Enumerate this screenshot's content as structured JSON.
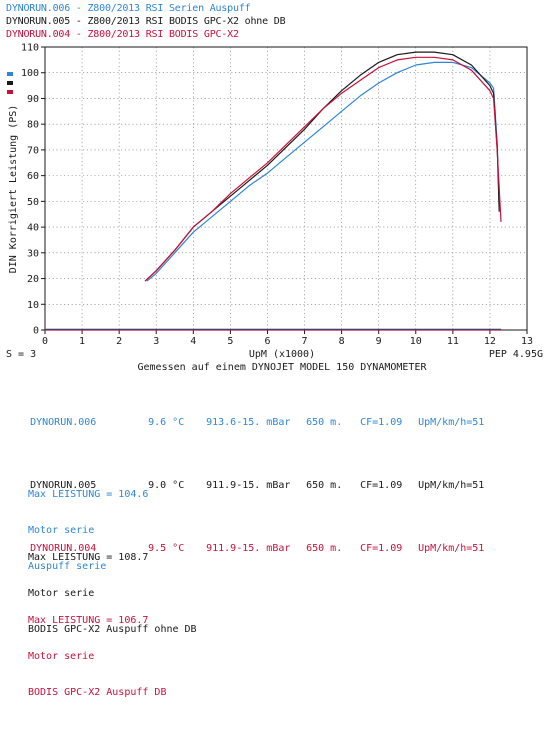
{
  "header_legend": [
    {
      "text": "DYNORUN.006 - Z800/2013 RSI Serien Auspuff",
      "color": "#2f86d6"
    },
    {
      "text": "DYNORUN.005 - Z800/2013 RSI BODIS GPC-X2 ohne DB",
      "color": "#1a1a1a"
    },
    {
      "text": "DYNORUN.004 - Z800/2013 RSI BODIS GPC-X2",
      "color": "#c8103c"
    }
  ],
  "chart_data": {
    "type": "line",
    "ylabel": "DIN Korrigiert Leistung (PS)",
    "xlabel": "UpM (x1000)",
    "footer_left": "S = 3",
    "footer_right": "PEP 4.95G",
    "subtitle": "Gemessen auf einem DYNOJET MODEL 150 DYNAMOMETER",
    "xlim": [
      0,
      13
    ],
    "ylim": [
      0,
      110
    ],
    "x_ticks": [
      0,
      1,
      2,
      3,
      4,
      5,
      6,
      7,
      8,
      9,
      10,
      11,
      12,
      13
    ],
    "y_ticks": [
      0,
      10,
      20,
      30,
      40,
      50,
      60,
      70,
      80,
      90,
      100,
      110
    ],
    "grid": true,
    "series": [
      {
        "name": "DYNORUN.006",
        "color": "#2f86d6",
        "points": [
          [
            2.75,
            19
          ],
          [
            3,
            22
          ],
          [
            3.5,
            30
          ],
          [
            4,
            38
          ],
          [
            4.5,
            44
          ],
          [
            5,
            50
          ],
          [
            5.5,
            56
          ],
          [
            6,
            61
          ],
          [
            6.5,
            67
          ],
          [
            7,
            73
          ],
          [
            7.5,
            79
          ],
          [
            8,
            85
          ],
          [
            8.5,
            91
          ],
          [
            9,
            96
          ],
          [
            9.5,
            100
          ],
          [
            10,
            103
          ],
          [
            10.5,
            104
          ],
          [
            11,
            104
          ],
          [
            11.5,
            102
          ],
          [
            12,
            96
          ],
          [
            12.1,
            94
          ],
          [
            12.2,
            72
          ],
          [
            12.25,
            48
          ]
        ]
      },
      {
        "name": "DYNORUN.005",
        "color": "#1a1a1a",
        "points": [
          [
            2.7,
            19
          ],
          [
            3,
            23
          ],
          [
            3.5,
            31
          ],
          [
            4,
            40
          ],
          [
            4.5,
            46
          ],
          [
            5,
            52
          ],
          [
            5.5,
            58
          ],
          [
            6,
            64
          ],
          [
            6.5,
            71
          ],
          [
            7,
            78
          ],
          [
            7.5,
            86
          ],
          [
            8,
            93
          ],
          [
            8.5,
            99
          ],
          [
            9,
            104
          ],
          [
            9.5,
            107
          ],
          [
            10,
            108
          ],
          [
            10.5,
            108
          ],
          [
            11,
            107
          ],
          [
            11.5,
            103
          ],
          [
            12,
            95
          ],
          [
            12.1,
            92
          ],
          [
            12.2,
            70
          ],
          [
            12.25,
            46
          ]
        ]
      },
      {
        "name": "DYNORUN.004",
        "color": "#c8103c",
        "points": [
          [
            2.7,
            19
          ],
          [
            3,
            23
          ],
          [
            3.5,
            31
          ],
          [
            4,
            40
          ],
          [
            4.5,
            46
          ],
          [
            5,
            53
          ],
          [
            5.5,
            59
          ],
          [
            6,
            65
          ],
          [
            6.5,
            72
          ],
          [
            7,
            79
          ],
          [
            7.5,
            86
          ],
          [
            8,
            92
          ],
          [
            8.5,
            97
          ],
          [
            9,
            102
          ],
          [
            9.5,
            105
          ],
          [
            10,
            106
          ],
          [
            10.5,
            106
          ],
          [
            11,
            105
          ],
          [
            11.5,
            101
          ],
          [
            12,
            93
          ],
          [
            12.1,
            90
          ],
          [
            12.2,
            69
          ],
          [
            12.3,
            42
          ]
        ]
      }
    ]
  },
  "runs": [
    {
      "name": "DYNORUN.006",
      "temp": "9.6 °C",
      "pressure": "913.6-15. mBar",
      "altitude": "650 m.",
      "cf": "CF=1.09",
      "speed": "UpM/km/h=51",
      "max": "Max LEISTUNG = 104.6",
      "line1": "Motor serie",
      "line2": "Auspuff serie",
      "color": "#2f86d6"
    },
    {
      "name": "DYNORUN.005",
      "temp": "9.0 °C",
      "pressure": "911.9-15. mBar",
      "altitude": "650 m.",
      "cf": "CF=1.09",
      "speed": "UpM/km/h=51",
      "max": "Max LEISTUNG = 108.7",
      "line1": "Motor serie",
      "line2": "BODIS GPC-X2 Auspuff ohne DB",
      "color": "#1a1a1a"
    },
    {
      "name": "DYNORUN.004",
      "temp": "9.5 °C",
      "pressure": "911.9-15. mBar",
      "altitude": "650 m.",
      "cf": "CF=1.09",
      "speed": "UpM/km/h=51",
      "max": "Max LEISTUNG = 106.7",
      "line1": "Motor serie",
      "line2": "BODIS GPC-X2 Auspuff DB",
      "color": "#c8103c"
    }
  ]
}
